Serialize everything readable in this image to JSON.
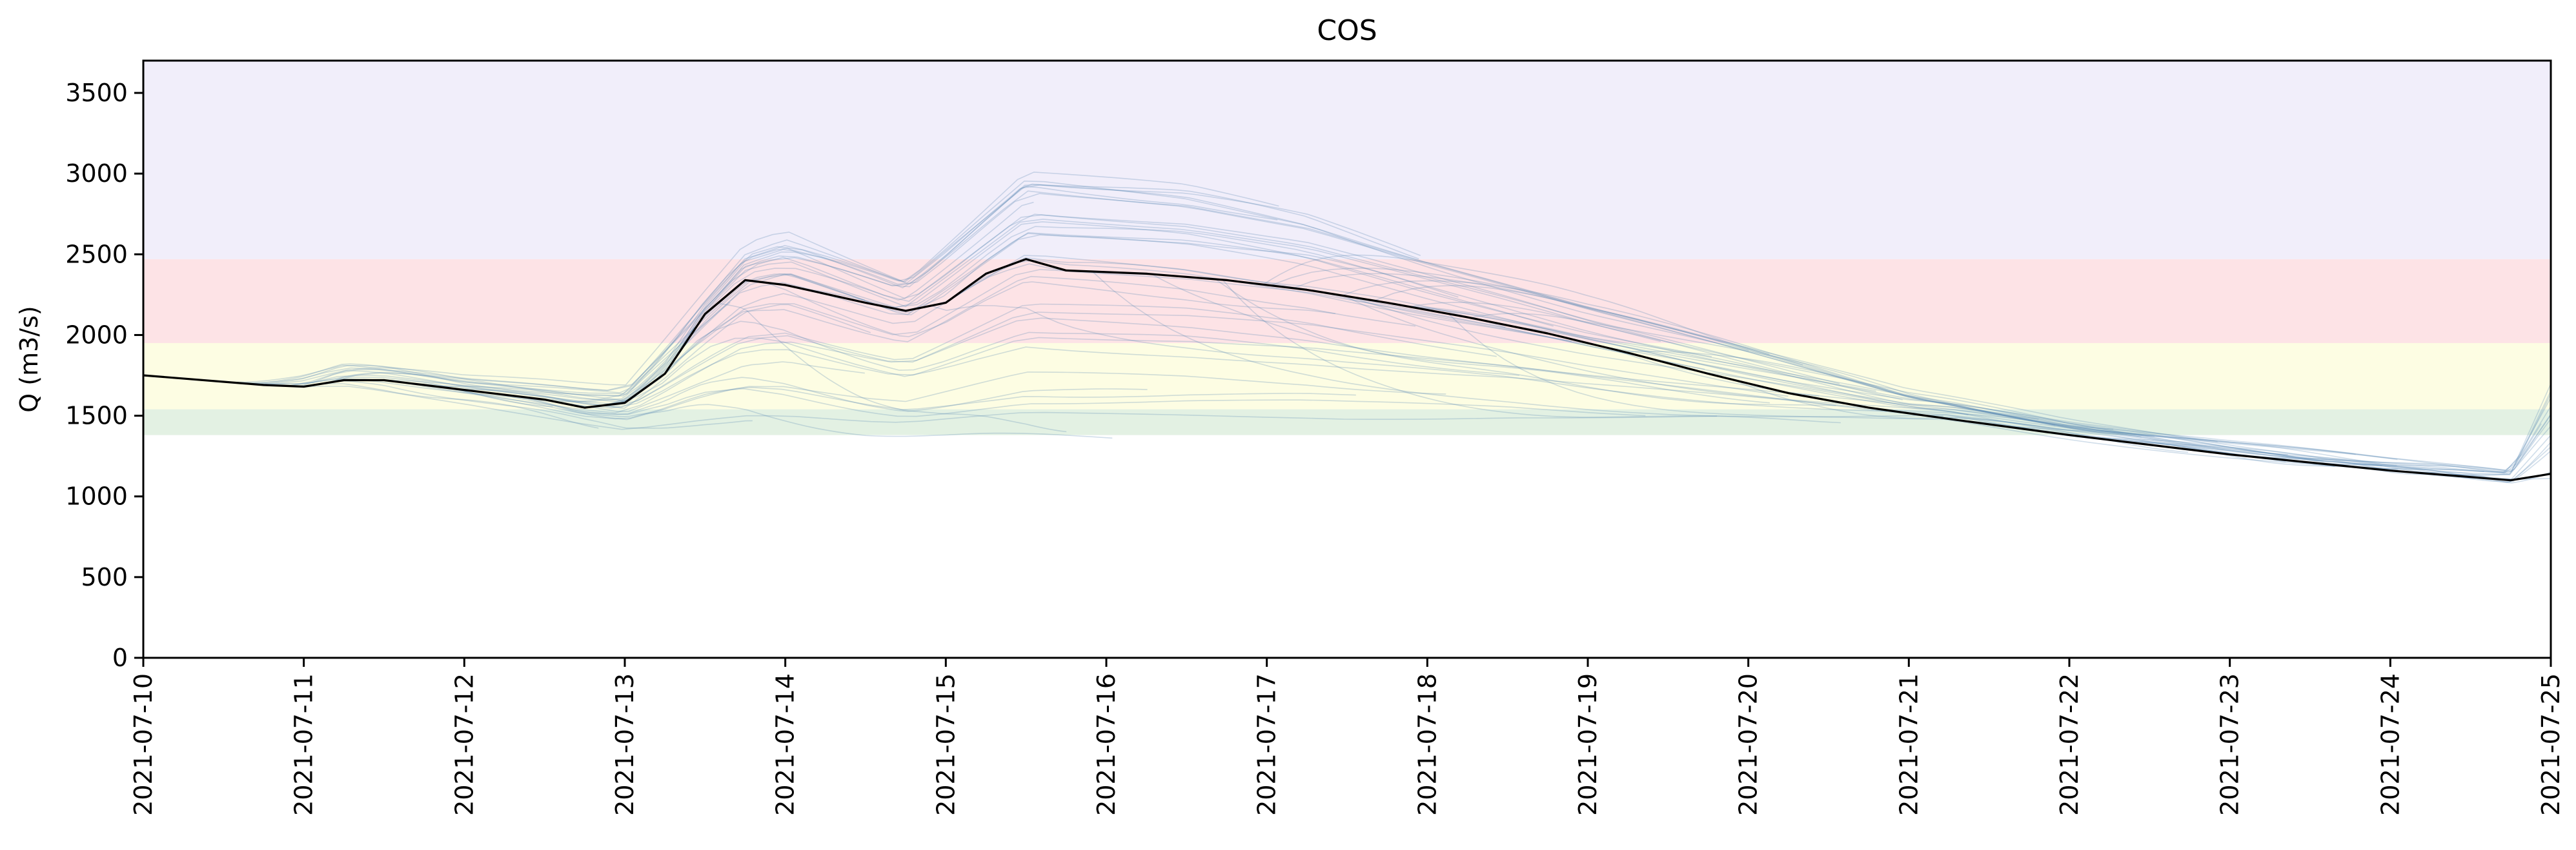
{
  "chart_data": {
    "type": "line",
    "title": "COS",
    "xlabel": "",
    "ylabel": "Q (m3/s)",
    "xlim": [
      "2021-07-10",
      "2021-07-25"
    ],
    "ylim": [
      0,
      3700
    ],
    "grid": false,
    "legend": "none",
    "x_ticks": [
      "2021-07-10",
      "2021-07-11",
      "2021-07-12",
      "2021-07-13",
      "2021-07-14",
      "2021-07-15",
      "2021-07-16",
      "2021-07-17",
      "2021-07-18",
      "2021-07-19",
      "2021-07-20",
      "2021-07-21",
      "2021-07-22",
      "2021-07-23",
      "2021-07-24",
      "2021-07-25"
    ],
    "y_ticks": [
      0,
      500,
      1000,
      1500,
      2000,
      2500,
      3000,
      3500
    ],
    "threshold_bands": [
      {
        "from": 1380,
        "to": 1540,
        "color": "#e3f1e3"
      },
      {
        "from": 1540,
        "to": 1950,
        "color": "#fdfde3"
      },
      {
        "from": 1950,
        "to": 2470,
        "color": "#fde3e6"
      },
      {
        "from": 2470,
        "to": 3700,
        "color": "#f1eefa"
      }
    ],
    "observed": {
      "color": "#000000",
      "points": [
        [
          "2021-07-10 00:00",
          1750
        ],
        [
          "2021-07-10 12:00",
          1710
        ],
        [
          "2021-07-10 18:00",
          1690
        ],
        [
          "2021-07-11 00:00",
          1680
        ],
        [
          "2021-07-11 06:00",
          1720
        ],
        [
          "2021-07-11 12:00",
          1720
        ],
        [
          "2021-07-11 18:00",
          1690
        ],
        [
          "2021-07-12 00:00",
          1660
        ],
        [
          "2021-07-12 12:00",
          1600
        ],
        [
          "2021-07-12 18:00",
          1550
        ],
        [
          "2021-07-13 00:00",
          1580
        ],
        [
          "2021-07-13 06:00",
          1760
        ],
        [
          "2021-07-13 12:00",
          2130
        ],
        [
          "2021-07-13 18:00",
          2340
        ],
        [
          "2021-07-14 00:00",
          2310
        ],
        [
          "2021-07-14 12:00",
          2200
        ],
        [
          "2021-07-14 18:00",
          2150
        ],
        [
          "2021-07-15 00:00",
          2200
        ],
        [
          "2021-07-15 06:00",
          2380
        ],
        [
          "2021-07-15 12:00",
          2470
        ],
        [
          "2021-07-15 18:00",
          2400
        ],
        [
          "2021-07-16 06:00",
          2380
        ],
        [
          "2021-07-16 18:00",
          2340
        ],
        [
          "2021-07-17 06:00",
          2280
        ],
        [
          "2021-07-17 18:00",
          2200
        ],
        [
          "2021-07-18 06:00",
          2110
        ],
        [
          "2021-07-18 18:00",
          2010
        ],
        [
          "2021-07-19 06:00",
          1890
        ],
        [
          "2021-07-19 18:00",
          1760
        ],
        [
          "2021-07-20 06:00",
          1640
        ],
        [
          "2021-07-20 18:00",
          1550
        ],
        [
          "2021-07-21 06:00",
          1480
        ],
        [
          "2021-07-22 00:00",
          1380
        ],
        [
          "2021-07-23 00:00",
          1260
        ],
        [
          "2021-07-24 00:00",
          1160
        ],
        [
          "2021-07-24 12:00",
          1120
        ],
        [
          "2021-07-24 18:00",
          1100
        ],
        [
          "2021-07-25 00:00",
          1140
        ]
      ]
    },
    "forecast_envelope": {
      "color": "#5b87b5",
      "upper": [
        [
          "2021-07-10 12:00",
          1720
        ],
        [
          "2021-07-11 06:00",
          1980
        ],
        [
          "2021-07-12 00:00",
          1800
        ],
        [
          "2021-07-13 00:00",
          1700
        ],
        [
          "2021-07-13 18:00",
          2700
        ],
        [
          "2021-07-14 00:00",
          2800
        ],
        [
          "2021-07-14 18:00",
          2450
        ],
        [
          "2021-07-15 12:00",
          3180
        ],
        [
          "2021-07-16 12:00",
          3060
        ],
        [
          "2021-07-17 06:00",
          2880
        ],
        [
          "2021-07-18 00:00",
          2600
        ],
        [
          "2021-07-19 00:00",
          2250
        ],
        [
          "2021-07-20 00:00",
          1950
        ],
        [
          "2021-07-21 00:00",
          1650
        ],
        [
          "2021-07-22 00:00",
          1460
        ],
        [
          "2021-07-23 00:00",
          1330
        ],
        [
          "2021-07-24 00:00",
          1220
        ],
        [
          "2021-07-24 18:00",
          1150
        ],
        [
          "2021-07-25 00:00",
          1700
        ]
      ],
      "lower": [
        [
          "2021-07-10 12:00",
          1690
        ],
        [
          "2021-07-11 06:00",
          1650
        ],
        [
          "2021-07-12 00:00",
          1560
        ],
        [
          "2021-07-13 00:00",
          1390
        ],
        [
          "2021-07-13 18:00",
          1360
        ],
        [
          "2021-07-14 12:00",
          1330
        ],
        [
          "2021-07-15 12:00",
          1340
        ],
        [
          "2021-07-16 12:00",
          1360
        ],
        [
          "2021-07-17 12:00",
          1380
        ],
        [
          "2021-07-18 12:00",
          1420
        ],
        [
          "2021-07-19 12:00",
          1430
        ],
        [
          "2021-07-20 12:00",
          1450
        ],
        [
          "2021-07-21 06:00",
          1470
        ],
        [
          "2021-07-22 00:00",
          1370
        ],
        [
          "2021-07-23 00:00",
          1250
        ],
        [
          "2021-07-24 00:00",
          1140
        ],
        [
          "2021-07-24 18:00",
          1080
        ],
        [
          "2021-07-25 00:00",
          1070
        ]
      ],
      "member_count": 80
    }
  }
}
